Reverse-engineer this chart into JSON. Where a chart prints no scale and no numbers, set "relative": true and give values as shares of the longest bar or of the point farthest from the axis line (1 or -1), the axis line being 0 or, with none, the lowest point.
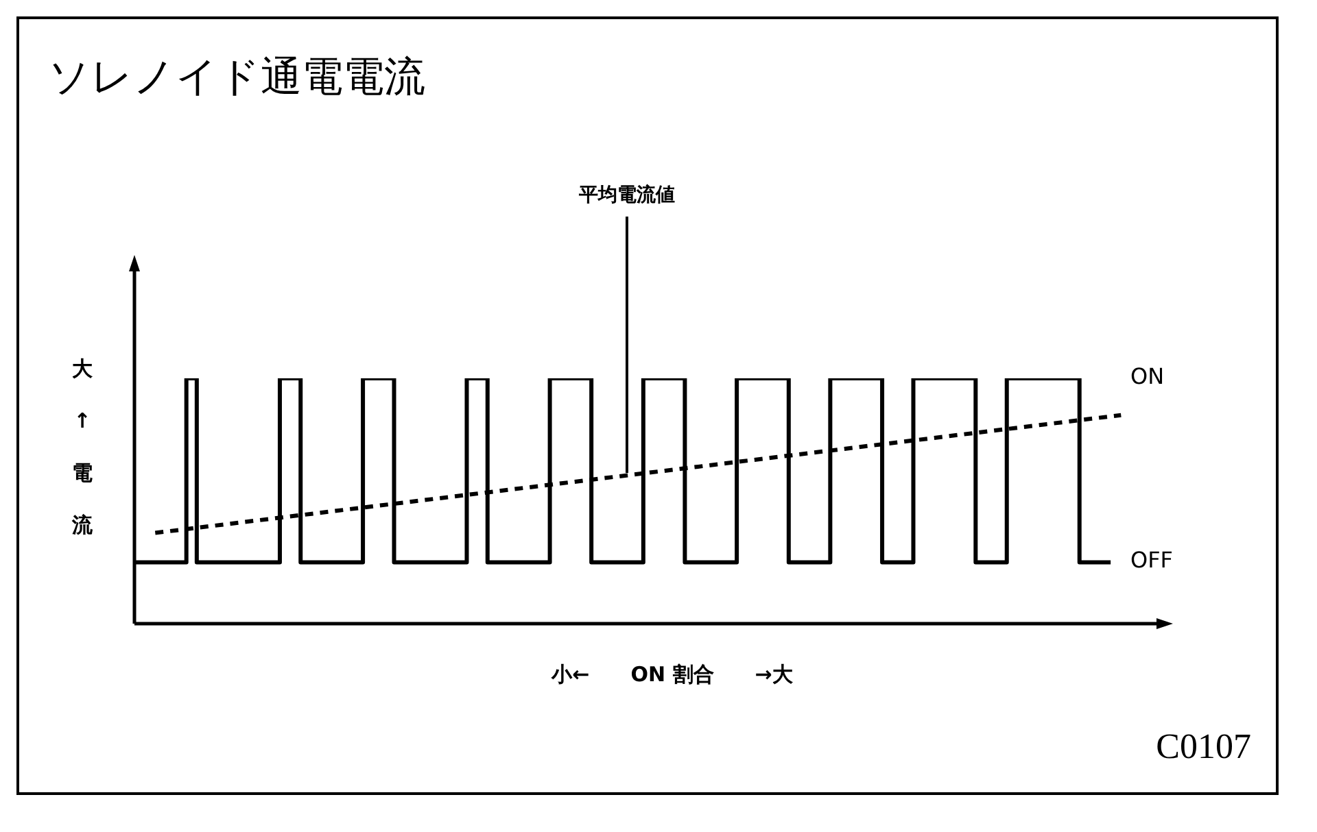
{
  "chart_data": {
    "type": "line",
    "title": "ソレノイド通電電流",
    "xlabel": "小←　　ON 割合　　→大",
    "ylabel": "大↑電流",
    "relative": true,
    "tick_labels": false,
    "legend": false,
    "marker": "none",
    "categories": [
      null,
      null,
      null,
      null,
      null,
      null,
      null,
      null,
      null,
      null,
      null,
      null,
      null,
      null,
      null,
      null,
      null,
      null,
      null,
      null,
      null,
      null,
      null,
      null,
      null,
      null,
      null,
      null,
      null,
      null,
      null,
      null,
      null,
      null,
      null,
      null,
      null,
      null,
      null,
      null,
      null,
      null,
      null,
      null,
      null,
      null,
      null,
      null,
      null,
      null,
      null,
      null,
      null,
      null,
      null,
      null,
      null,
      null,
      null,
      null,
      null,
      null,
      null,
      null,
      null,
      null,
      null,
      null,
      null,
      null,
      null,
      null,
      null,
      null,
      null,
      null,
      null,
      null,
      null,
      null,
      null,
      null,
      null,
      null,
      null,
      null,
      null,
      null,
      null,
      null,
      null,
      null,
      null,
      null,
      null,
      null,
      null,
      null,
      null,
      null,
      null
    ],
    "series": [
      {
        "type": "step",
        "color": "#000000",
        "line_style": "solid",
        "values": [
          0.25,
          0.25,
          0.25,
          0.25,
          0.25,
          0.25,
          1,
          0.25,
          0.25,
          0.25,
          0.25,
          0.25,
          0.25,
          0.25,
          0.25,
          1,
          1,
          0.25,
          0.25,
          0.25,
          0.25,
          0.25,
          0.25,
          1,
          1,
          1,
          0.25,
          0.25,
          0.25,
          0.25,
          0.25,
          0.25,
          0.25,
          1,
          1,
          0.25,
          0.25,
          0.25,
          0.25,
          0.25,
          0.25,
          1,
          1,
          1,
          1,
          0.25,
          0.25,
          0.25,
          0.25,
          0.25,
          1,
          1,
          1,
          1,
          0.25,
          0.25,
          0.25,
          0.25,
          0.25,
          1,
          1,
          1,
          1,
          1,
          0.25,
          0.25,
          0.25,
          0.25,
          1,
          1,
          1,
          1,
          1,
          0.25,
          0.25,
          0.25,
          1,
          1,
          1,
          1,
          1,
          1,
          0.25,
          0.25,
          0.25,
          1,
          1,
          1,
          1,
          1,
          1,
          1,
          0.25,
          0.25,
          0.25,
          null,
          null,
          null,
          null,
          null,
          null
        ]
      },
      {
        "type": "line",
        "color": "#000000",
        "line_style": "dashed",
        "values": [
          null,
          null,
          0.37,
          null,
          null,
          null,
          null,
          null,
          null,
          null,
          null,
          null,
          null,
          null,
          null,
          null,
          null,
          null,
          null,
          null,
          null,
          null,
          null,
          null,
          null,
          null,
          null,
          null,
          null,
          null,
          null,
          null,
          null,
          null,
          null,
          null,
          null,
          null,
          null,
          null,
          null,
          null,
          null,
          null,
          null,
          null,
          null,
          null,
          null,
          null,
          null,
          null,
          null,
          null,
          null,
          null,
          null,
          null,
          null,
          null,
          null,
          null,
          null,
          null,
          null,
          null,
          null,
          null,
          null,
          null,
          null,
          null,
          null,
          null,
          null,
          null,
          null,
          null,
          null,
          null,
          null,
          null,
          null,
          null,
          null,
          null,
          null,
          null,
          null,
          null,
          null,
          null,
          null,
          null,
          null,
          0.85,
          null,
          null,
          null,
          null,
          null
        ]
      }
    ],
    "annotations": [
      "ON",
      "OFF",
      "平均電流値",
      "C0107"
    ]
  }
}
